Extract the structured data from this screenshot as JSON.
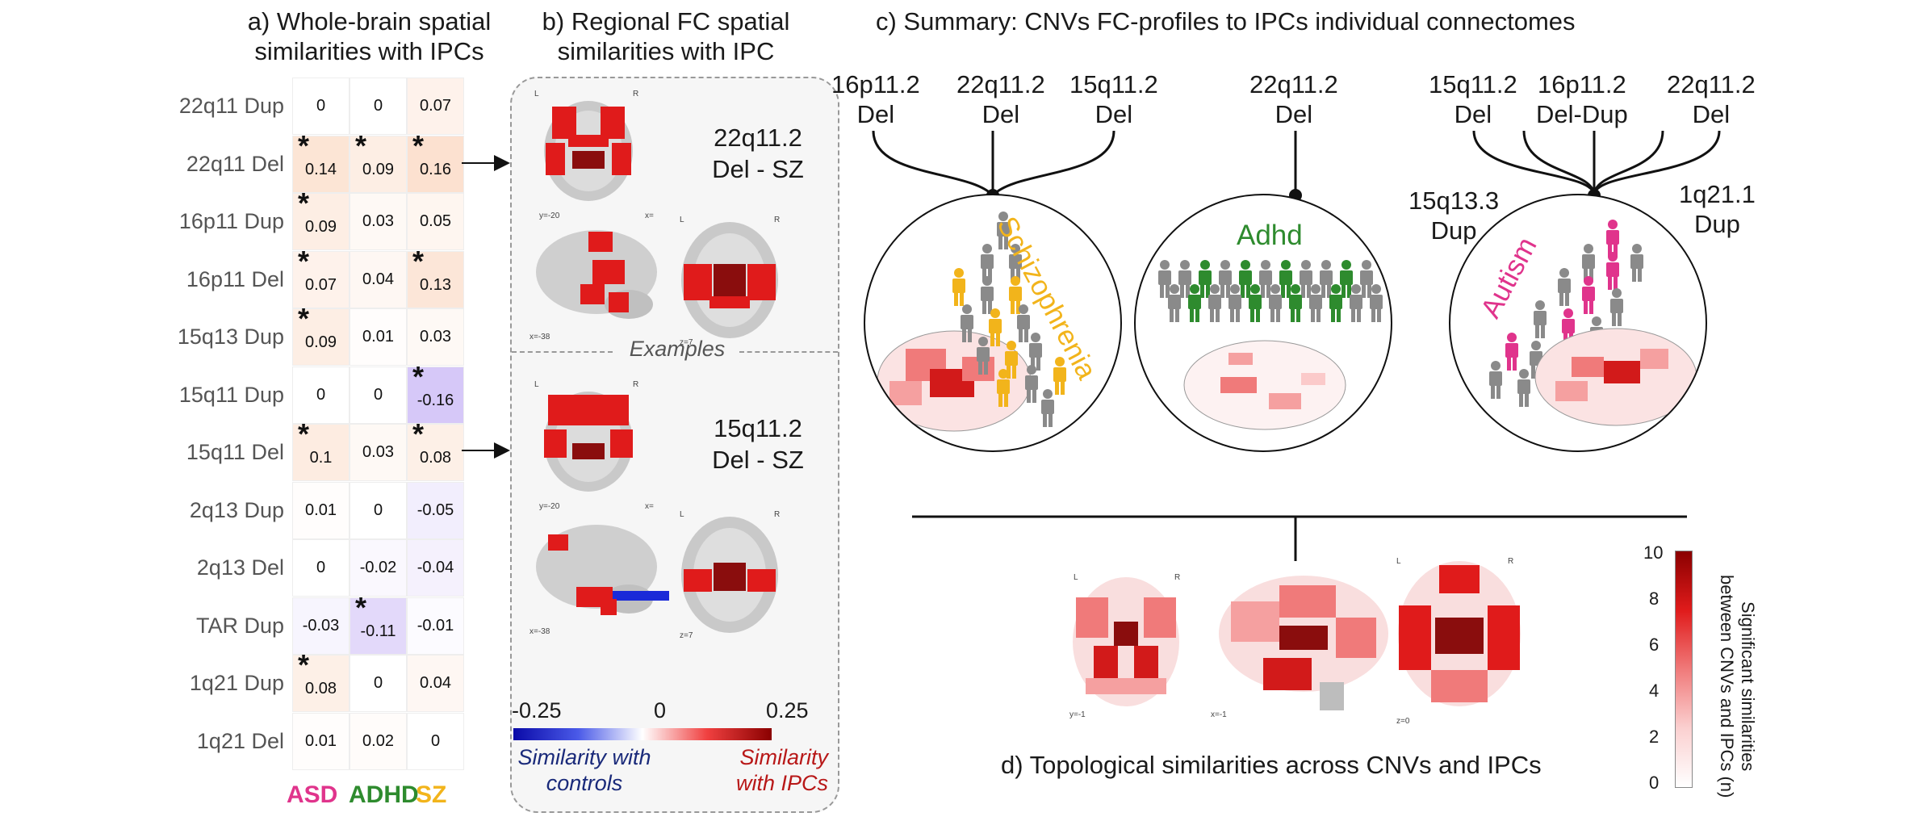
{
  "panel_a": {
    "title_line1": "a) Whole-brain spatial",
    "title_line2": "similarities with IPCs",
    "columns": [
      {
        "label": "ASD",
        "color": "#e0348c"
      },
      {
        "label": "ADHD",
        "color": "#2e8b2e"
      },
      {
        "label": "SZ",
        "color": "#f2b41b"
      }
    ],
    "rows": [
      {
        "label": "22q11 Dup",
        "values": [
          "0",
          "0",
          "0.07"
        ],
        "sig": [
          false,
          false,
          false
        ]
      },
      {
        "label": "22q11 Del",
        "values": [
          "0.14",
          "0.09",
          "0.16"
        ],
        "sig": [
          true,
          true,
          true
        ]
      },
      {
        "label": "16p11 Dup",
        "values": [
          "0.09",
          "0.03",
          "0.05"
        ],
        "sig": [
          true,
          false,
          false
        ]
      },
      {
        "label": "16p11 Del",
        "values": [
          "0.07",
          "0.04",
          "0.13"
        ],
        "sig": [
          true,
          false,
          true
        ]
      },
      {
        "label": "15q13 Dup",
        "values": [
          "0.09",
          "0.01",
          "0.03"
        ],
        "sig": [
          true,
          false,
          false
        ]
      },
      {
        "label": "15q11 Dup",
        "values": [
          "0",
          "0",
          "-0.16"
        ],
        "sig": [
          false,
          false,
          true
        ]
      },
      {
        "label": "15q11 Del",
        "values": [
          "0.1",
          "0.03",
          "0.08"
        ],
        "sig": [
          true,
          false,
          true
        ]
      },
      {
        "label": "2q13 Dup",
        "values": [
          "0.01",
          "0",
          "-0.05"
        ],
        "sig": [
          false,
          false,
          false
        ]
      },
      {
        "label": "2q13 Del",
        "values": [
          "0",
          "-0.02",
          "-0.04"
        ],
        "sig": [
          false,
          false,
          false
        ]
      },
      {
        "label": "TAR Dup",
        "values": [
          "-0.03",
          "-0.11",
          "-0.01"
        ],
        "sig": [
          false,
          true,
          false
        ]
      },
      {
        "label": "1q21 Dup",
        "values": [
          "0.08",
          "0",
          "0.04"
        ],
        "sig": [
          true,
          false,
          false
        ]
      },
      {
        "label": "1q21 Del",
        "values": [
          "0.01",
          "0.02",
          "0"
        ],
        "sig": [
          false,
          false,
          false
        ]
      }
    ],
    "star": "*"
  },
  "panel_b": {
    "title_line1": "b) Regional FC spatial",
    "title_line2": "similarities with IPC",
    "example1_line1": "22q11.2",
    "example1_line2": "Del - SZ",
    "example2_line1": "15q11.2",
    "example2_line2": "Del - SZ",
    "examples_label": "Examples",
    "coords1": {
      "coronal": "y=-20",
      "sagittal": "x=-38",
      "axial": "z=7",
      "x_label": "x="
    },
    "coords2": {
      "coronal": "y=-20",
      "sagittal": "x=-38",
      "axial": "z=7",
      "x_label": "x="
    },
    "lr": {
      "left": "L",
      "right": "R"
    },
    "colorbar": {
      "min": "-0.25",
      "mid": "0",
      "max": "0.25"
    },
    "cap_left_line1": "Similarity with",
    "cap_left_line2": "controls",
    "cap_right_line1": "Similarity",
    "cap_right_line2": "with IPCs",
    "cap_left_color": "#1a2a7a",
    "cap_right_color": "#b81818"
  },
  "panel_c": {
    "title": "c) Summary: CNVs FC-profiles to IPCs individual connectomes",
    "group1_cnvs": [
      {
        "line1": "16p11.2",
        "line2": "Del"
      },
      {
        "line1": "22q11.2",
        "line2": "Del"
      },
      {
        "line1": "15q11.2",
        "line2": "Del"
      }
    ],
    "group2_cnvs": [
      {
        "line1": "22q11.2",
        "line2": "Del"
      }
    ],
    "group3_cnvs": [
      {
        "line1": "15q11.2",
        "line2": "Del"
      },
      {
        "line1": "16p11.2",
        "line2": "Del-Dup"
      },
      {
        "line1": "22q11.2",
        "line2": "Del"
      }
    ],
    "side_left_line1": "15q13.3",
    "side_left_line2": "Dup",
    "side_right_line1": "1q21.1",
    "side_right_line2": "Dup",
    "diagnosis1": "Schizophrenia",
    "diagnosis2": "Adhd",
    "diagnosis3": "Autism",
    "diag_colors": {
      "sz": "#f2b41b",
      "adhd": "#2e8b2e",
      "asd": "#e0348c"
    }
  },
  "panel_d": {
    "caption": "d) Topological similarities across CNVs and IPCs",
    "coords": {
      "coronal": "y=-1",
      "sagittal": "x=-1",
      "axial": "z=0"
    },
    "lr": {
      "left": "L",
      "right": "R"
    },
    "colorbar_ticks": [
      "10",
      "8",
      "6",
      "4",
      "2",
      "0"
    ],
    "colorbar_title_line1": "Significant similarities",
    "colorbar_title_line2": "between CNVs and IPCs (n)"
  }
}
